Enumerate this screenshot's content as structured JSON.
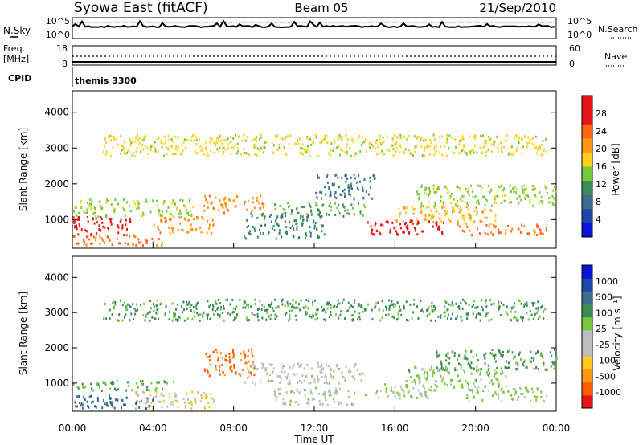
{
  "header": {
    "station": "Syowa East (fitACF)",
    "beam": "Beam 05",
    "date": "21/Sep/2010"
  },
  "nsky_panel": {
    "left_label": "N.Sky",
    "left_ticks": [
      "10^5",
      "10^0"
    ],
    "right_ticks": [
      "10^5",
      "10^0"
    ],
    "right_label": "N.Search"
  },
  "freq_panel": {
    "left_label_line1": "Freq.",
    "left_label_line2": "[MHz]",
    "left_ticks": [
      "18",
      "8"
    ],
    "right_ticks": [
      "60",
      "0"
    ],
    "right_label": "Nave"
  },
  "cpid_panel": {
    "label": "CPID",
    "value": "themis 3300"
  },
  "colors": {
    "power_scale": [
      "#0a14d2",
      "#1e46aa",
      "#3c6e8c",
      "#3c8c5a",
      "#78c83c",
      "#ffd21e",
      "#ff9614",
      "#ff6414",
      "#e61414",
      "#e61414"
    ],
    "velocity_scale": [
      "#e61414",
      "#ff5a00",
      "#ff9614",
      "#ffc81e",
      "#bdbdbd",
      "#bdbdbd",
      "#78c83c",
      "#3c8c5a",
      "#3c6e8c",
      "#1e46aa",
      "#0a14d2"
    ]
  },
  "chart_data": [
    {
      "type": "heatmap",
      "panel": "power",
      "ylabel": "Slant Range [km]",
      "y_ticks": [
        "1000",
        "2000",
        "3000",
        "4000"
      ],
      "ylim": [
        200,
        4600
      ],
      "xlim_hours": [
        0,
        24
      ],
      "colorbar_label": "Power [dB]",
      "colorbar_ticks": [
        "4",
        "8",
        "12",
        "16",
        "20",
        "24",
        "28"
      ],
      "colorbar_range": [
        0,
        30
      ],
      "bands": [
        {
          "t": [
            0.0,
            3.0
          ],
          "r": [
            600,
            1100
          ],
          "v": 28
        },
        {
          "t": [
            0.0,
            4.5
          ],
          "r": [
            300,
            600
          ],
          "v": 22
        },
        {
          "t": [
            0.0,
            6.0
          ],
          "r": [
            1100,
            1600
          ],
          "v": 14
        },
        {
          "t": [
            4.0,
            7.0
          ],
          "r": [
            650,
            1100
          ],
          "v": 20
        },
        {
          "t": [
            6.5,
            9.5
          ],
          "r": [
            1200,
            1700
          ],
          "v": 20
        },
        {
          "t": [
            8.5,
            12.5
          ],
          "r": [
            500,
            1200
          ],
          "v": 10
        },
        {
          "t": [
            10.0,
            14.5
          ],
          "r": [
            1100,
            1500
          ],
          "v": 12
        },
        {
          "t": [
            12.0,
            15.0
          ],
          "r": [
            1600,
            2300
          ],
          "v": 8
        },
        {
          "t": [
            14.5,
            18.5
          ],
          "r": [
            600,
            1000
          ],
          "v": 26
        },
        {
          "t": [
            16.0,
            21.0
          ],
          "r": [
            900,
            1400
          ],
          "v": 18
        },
        {
          "t": [
            17.0,
            24.0
          ],
          "r": [
            1400,
            2000
          ],
          "v": 14
        },
        {
          "t": [
            19.0,
            23.5
          ],
          "r": [
            600,
            900
          ],
          "v": 22
        },
        {
          "t": [
            1.5,
            23.5
          ],
          "r": [
            2800,
            3400
          ],
          "v": 16
        }
      ]
    },
    {
      "type": "heatmap",
      "panel": "velocity",
      "ylabel": "Slant Range [km]",
      "y_ticks": [
        "1000",
        "2000",
        "3000",
        "4000"
      ],
      "ylim": [
        200,
        4600
      ],
      "xlim_hours": [
        0,
        24
      ],
      "xlabel": "Time UT",
      "x_ticks": [
        "00:00",
        "04:00",
        "08:00",
        "12:00",
        "16:00",
        "20:00",
        "00:00"
      ],
      "colorbar_label": "Velocity [m s⁻¹]",
      "colorbar_ticks": [
        "-1000",
        "-500",
        "-100",
        "-25",
        "25",
        "100",
        "500",
        "1000"
      ],
      "colorbar_range": [
        -1200,
        1200
      ],
      "bands": [
        {
          "t": [
            0.0,
            5.0
          ],
          "r": [
            800,
            1100
          ],
          "v": 300
        },
        {
          "t": [
            0.0,
            4.0
          ],
          "r": [
            300,
            700
          ],
          "v": 700
        },
        {
          "t": [
            3.0,
            7.0
          ],
          "r": [
            300,
            800
          ],
          "v": -300
        },
        {
          "t": [
            6.5,
            9.0
          ],
          "r": [
            1200,
            2000
          ],
          "v": -800
        },
        {
          "t": [
            8.5,
            14.5
          ],
          "r": [
            1000,
            1600
          ],
          "v": 0
        },
        {
          "t": [
            10.0,
            14.0
          ],
          "r": [
            400,
            900
          ],
          "v": 50
        },
        {
          "t": [
            14.5,
            18.0
          ],
          "r": [
            600,
            1000
          ],
          "v": 100
        },
        {
          "t": [
            16.5,
            21.5
          ],
          "r": [
            900,
            1500
          ],
          "v": 200
        },
        {
          "t": [
            18.0,
            24.0
          ],
          "r": [
            1400,
            2000
          ],
          "v": 400
        },
        {
          "t": [
            19.5,
            23.5
          ],
          "r": [
            500,
            900
          ],
          "v": 150
        },
        {
          "t": [
            1.5,
            23.5
          ],
          "r": [
            2800,
            3400
          ],
          "v": 400
        }
      ]
    }
  ]
}
